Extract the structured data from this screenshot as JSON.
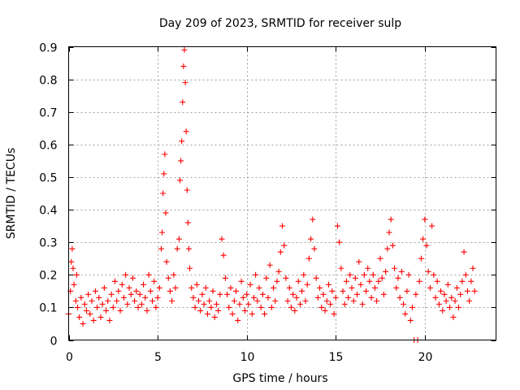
{
  "chart_data": {
    "type": "scatter",
    "title": "Day 209 of 2023, SRMTID for receiver sulp",
    "xlabel": "GPS time / hours",
    "ylabel": "SRMTID / TECUs",
    "xlim": [
      0,
      24
    ],
    "ylim": [
      0,
      0.9
    ],
    "x_ticks": [
      0,
      5,
      10,
      15,
      20
    ],
    "x_tick_labels": [
      "0",
      "5",
      "10",
      "15",
      "20"
    ],
    "y_ticks": [
      0,
      0.1,
      0.2,
      0.3,
      0.4,
      0.5,
      0.6,
      0.7,
      0.8,
      0.9
    ],
    "y_tick_labels": [
      "0",
      "0.1",
      "0.2",
      "0.3",
      "0.4",
      "0.5",
      "0.6",
      "0.7",
      "0.8",
      "0.9"
    ],
    "grid": true,
    "marker": "+",
    "color": "#ff0000",
    "series": [
      {
        "name": "SRMTID",
        "points": [
          [
            0.0,
            0.08
          ],
          [
            0.1,
            0.15
          ],
          [
            0.15,
            0.24
          ],
          [
            0.2,
            0.28
          ],
          [
            0.25,
            0.22
          ],
          [
            0.3,
            0.17
          ],
          [
            0.4,
            0.12
          ],
          [
            0.45,
            0.2
          ],
          [
            0.5,
            0.1
          ],
          [
            0.6,
            0.07
          ],
          [
            0.7,
            0.13
          ],
          [
            0.8,
            0.05
          ],
          [
            0.9,
            0.11
          ],
          [
            1.0,
            0.09
          ],
          [
            1.1,
            0.14
          ],
          [
            1.2,
            0.08
          ],
          [
            1.3,
            0.12
          ],
          [
            1.4,
            0.06
          ],
          [
            1.5,
            0.15
          ],
          [
            1.6,
            0.1
          ],
          [
            1.7,
            0.13
          ],
          [
            1.8,
            0.07
          ],
          [
            1.9,
            0.11
          ],
          [
            2.0,
            0.16
          ],
          [
            2.1,
            0.09
          ],
          [
            2.2,
            0.12
          ],
          [
            2.3,
            0.06
          ],
          [
            2.4,
            0.14
          ],
          [
            2.5,
            0.1
          ],
          [
            2.6,
            0.18
          ],
          [
            2.7,
            0.12
          ],
          [
            2.8,
            0.15
          ],
          [
            2.9,
            0.09
          ],
          [
            3.0,
            0.17
          ],
          [
            3.1,
            0.13
          ],
          [
            3.2,
            0.2
          ],
          [
            3.3,
            0.11
          ],
          [
            3.4,
            0.16
          ],
          [
            3.5,
            0.14
          ],
          [
            3.6,
            0.19
          ],
          [
            3.7,
            0.12
          ],
          [
            3.8,
            0.15
          ],
          [
            3.9,
            0.1
          ],
          [
            4.0,
            0.14
          ],
          [
            4.1,
            0.11
          ],
          [
            4.2,
            0.17
          ],
          [
            4.3,
            0.13
          ],
          [
            4.4,
            0.09
          ],
          [
            4.5,
            0.2
          ],
          [
            4.6,
            0.15
          ],
          [
            4.7,
            0.12
          ],
          [
            4.8,
            0.18
          ],
          [
            4.9,
            0.1
          ],
          [
            5.0,
            0.13
          ],
          [
            5.1,
            0.16
          ],
          [
            5.2,
            0.28
          ],
          [
            5.25,
            0.33
          ],
          [
            5.3,
            0.45
          ],
          [
            5.35,
            0.51
          ],
          [
            5.4,
            0.57
          ],
          [
            5.45,
            0.39
          ],
          [
            5.5,
            0.24
          ],
          [
            5.6,
            0.19
          ],
          [
            5.7,
            0.15
          ],
          [
            5.8,
            0.12
          ],
          [
            5.9,
            0.2
          ],
          [
            6.0,
            0.16
          ],
          [
            6.1,
            0.28
          ],
          [
            6.2,
            0.31
          ],
          [
            6.25,
            0.49
          ],
          [
            6.3,
            0.55
          ],
          [
            6.35,
            0.61
          ],
          [
            6.4,
            0.73
          ],
          [
            6.45,
            0.84
          ],
          [
            6.5,
            0.89
          ],
          [
            6.55,
            0.79
          ],
          [
            6.6,
            0.64
          ],
          [
            6.65,
            0.46
          ],
          [
            6.7,
            0.36
          ],
          [
            6.75,
            0.28
          ],
          [
            6.8,
            0.22
          ],
          [
            6.9,
            0.16
          ],
          [
            7.0,
            0.13
          ],
          [
            7.1,
            0.1
          ],
          [
            7.2,
            0.17
          ],
          [
            7.3,
            0.12
          ],
          [
            7.4,
            0.09
          ],
          [
            7.5,
            0.14
          ],
          [
            7.6,
            0.11
          ],
          [
            7.7,
            0.16
          ],
          [
            7.8,
            0.08
          ],
          [
            7.9,
            0.12
          ],
          [
            8.0,
            0.1
          ],
          [
            8.1,
            0.15
          ],
          [
            8.2,
            0.07
          ],
          [
            8.3,
            0.11
          ],
          [
            8.4,
            0.09
          ],
          [
            8.5,
            0.14
          ],
          [
            8.6,
            0.31
          ],
          [
            8.7,
            0.26
          ],
          [
            8.8,
            0.19
          ],
          [
            8.9,
            0.14
          ],
          [
            9.0,
            0.1
          ],
          [
            9.1,
            0.16
          ],
          [
            9.2,
            0.08
          ],
          [
            9.3,
            0.12
          ],
          [
            9.4,
            0.15
          ],
          [
            9.5,
            0.06
          ],
          [
            9.6,
            0.11
          ],
          [
            9.7,
            0.18
          ],
          [
            9.8,
            0.13
          ],
          [
            9.9,
            0.09
          ],
          [
            10.0,
            0.14
          ],
          [
            10.1,
            0.11
          ],
          [
            10.2,
            0.17
          ],
          [
            10.3,
            0.08
          ],
          [
            10.4,
            0.13
          ],
          [
            10.5,
            0.2
          ],
          [
            10.6,
            0.12
          ],
          [
            10.7,
            0.16
          ],
          [
            10.8,
            0.1
          ],
          [
            10.9,
            0.14
          ],
          [
            11.0,
            0.08
          ],
          [
            11.1,
            0.19
          ],
          [
            11.2,
            0.13
          ],
          [
            11.3,
            0.23
          ],
          [
            11.4,
            0.1
          ],
          [
            11.5,
            0.16
          ],
          [
            11.6,
            0.12
          ],
          [
            11.7,
            0.18
          ],
          [
            11.8,
            0.21
          ],
          [
            11.9,
            0.27
          ],
          [
            12.0,
            0.35
          ],
          [
            12.1,
            0.29
          ],
          [
            12.2,
            0.19
          ],
          [
            12.3,
            0.12
          ],
          [
            12.4,
            0.16
          ],
          [
            12.5,
            0.1
          ],
          [
            12.6,
            0.14
          ],
          [
            12.7,
            0.09
          ],
          [
            12.8,
            0.13
          ],
          [
            12.9,
            0.18
          ],
          [
            13.0,
            0.11
          ],
          [
            13.1,
            0.15
          ],
          [
            13.2,
            0.2
          ],
          [
            13.3,
            0.12
          ],
          [
            13.4,
            0.17
          ],
          [
            13.5,
            0.25
          ],
          [
            13.6,
            0.31
          ],
          [
            13.7,
            0.37
          ],
          [
            13.8,
            0.28
          ],
          [
            13.9,
            0.19
          ],
          [
            14.0,
            0.13
          ],
          [
            14.1,
            0.16
          ],
          [
            14.2,
            0.1
          ],
          [
            14.3,
            0.14
          ],
          [
            14.4,
            0.09
          ],
          [
            14.5,
            0.12
          ],
          [
            14.6,
            0.17
          ],
          [
            14.7,
            0.11
          ],
          [
            14.8,
            0.15
          ],
          [
            14.9,
            0.08
          ],
          [
            15.0,
            0.13
          ],
          [
            15.1,
            0.35
          ],
          [
            15.2,
            0.3
          ],
          [
            15.3,
            0.22
          ],
          [
            15.4,
            0.15
          ],
          [
            15.5,
            0.11
          ],
          [
            15.6,
            0.18
          ],
          [
            15.7,
            0.13
          ],
          [
            15.8,
            0.2
          ],
          [
            15.9,
            0.16
          ],
          [
            16.0,
            0.12
          ],
          [
            16.1,
            0.19
          ],
          [
            16.2,
            0.14
          ],
          [
            16.3,
            0.24
          ],
          [
            16.4,
            0.17
          ],
          [
            16.5,
            0.11
          ],
          [
            16.6,
            0.2
          ],
          [
            16.7,
            0.15
          ],
          [
            16.8,
            0.22
          ],
          [
            16.9,
            0.18
          ],
          [
            17.0,
            0.13
          ],
          [
            17.1,
            0.2
          ],
          [
            17.2,
            0.16
          ],
          [
            17.3,
            0.12
          ],
          [
            17.4,
            0.18
          ],
          [
            17.5,
            0.25
          ],
          [
            17.6,
            0.19
          ],
          [
            17.7,
            0.14
          ],
          [
            17.8,
            0.21
          ],
          [
            17.9,
            0.28
          ],
          [
            18.0,
            0.33
          ],
          [
            18.1,
            0.37
          ],
          [
            18.2,
            0.29
          ],
          [
            18.3,
            0.22
          ],
          [
            18.4,
            0.16
          ],
          [
            18.5,
            0.19
          ],
          [
            18.6,
            0.13
          ],
          [
            18.7,
            0.21
          ],
          [
            18.8,
            0.11
          ],
          [
            18.9,
            0.08
          ],
          [
            19.0,
            0.15
          ],
          [
            19.1,
            0.2
          ],
          [
            19.2,
            0.06
          ],
          [
            19.3,
            0.1
          ],
          [
            19.4,
            0.0
          ],
          [
            19.5,
            0.14
          ],
          [
            19.6,
            0.0
          ],
          [
            19.7,
            0.18
          ],
          [
            19.8,
            0.25
          ],
          [
            19.9,
            0.31
          ],
          [
            20.0,
            0.37
          ],
          [
            20.1,
            0.29
          ],
          [
            20.2,
            0.21
          ],
          [
            20.3,
            0.16
          ],
          [
            20.4,
            0.35
          ],
          [
            20.5,
            0.2
          ],
          [
            20.6,
            0.13
          ],
          [
            20.7,
            0.18
          ],
          [
            20.8,
            0.11
          ],
          [
            20.9,
            0.15
          ],
          [
            21.0,
            0.09
          ],
          [
            21.1,
            0.14
          ],
          [
            21.2,
            0.12
          ],
          [
            21.3,
            0.17
          ],
          [
            21.4,
            0.1
          ],
          [
            21.5,
            0.13
          ],
          [
            21.6,
            0.07
          ],
          [
            21.7,
            0.12
          ],
          [
            21.8,
            0.16
          ],
          [
            21.9,
            0.1
          ],
          [
            22.0,
            0.14
          ],
          [
            22.1,
            0.18
          ],
          [
            22.2,
            0.27
          ],
          [
            22.3,
            0.2
          ],
          [
            22.4,
            0.15
          ],
          [
            22.5,
            0.12
          ],
          [
            22.6,
            0.18
          ],
          [
            22.7,
            0.22
          ],
          [
            22.8,
            0.15
          ]
        ]
      }
    ]
  }
}
